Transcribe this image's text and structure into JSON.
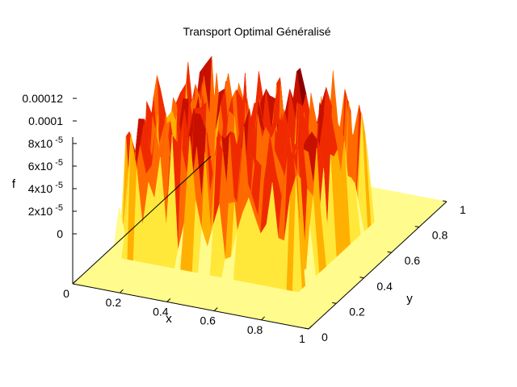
{
  "chart_data": {
    "type": "surface3d",
    "title": "Transport Optimal Généralisé",
    "xlabel": "x",
    "ylabel": "y",
    "zlabel": "f",
    "xlim": [
      0,
      1
    ],
    "ylim": [
      0,
      1
    ],
    "zlim": [
      0,
      0.00013
    ],
    "x_ticks": [
      {
        "value": 0,
        "label": "0"
      },
      {
        "value": 0.2,
        "label": "0.2"
      },
      {
        "value": 0.4,
        "label": "0.4"
      },
      {
        "value": 0.6,
        "label": "0.6"
      },
      {
        "value": 0.8,
        "label": "0.8"
      },
      {
        "value": 1,
        "label": "1"
      }
    ],
    "y_ticks": [
      {
        "value": 0,
        "label": "0"
      },
      {
        "value": 0.2,
        "label": "0.2"
      },
      {
        "value": 0.4,
        "label": "0.4"
      },
      {
        "value": 0.6,
        "label": "0.6"
      },
      {
        "value": 0.8,
        "label": "0.8"
      },
      {
        "value": 1,
        "label": "1"
      }
    ],
    "z_ticks": [
      {
        "value": 0,
        "label": "0"
      },
      {
        "value": 2e-05,
        "label": "2x10",
        "exp": "-5"
      },
      {
        "value": 4e-05,
        "label": "4x10",
        "exp": "-5"
      },
      {
        "value": 6e-05,
        "label": "6x10",
        "exp": "-5"
      },
      {
        "value": 8e-05,
        "label": "8x10",
        "exp": "-5"
      },
      {
        "value": 0.0001,
        "label": "0.0001"
      },
      {
        "value": 0.00012,
        "label": "0.00012"
      }
    ],
    "support": {
      "x": [
        0.05,
        0.82
      ],
      "y": [
        0.25,
        0.78
      ]
    },
    "plateau_value": 9.5e-05,
    "colormap": [
      "#fffb8c",
      "#ffe83a",
      "#ffb000",
      "#ff6a00",
      "#f02a00",
      "#c81000",
      "#8a0000",
      "#3c0000"
    ],
    "grid": false,
    "legend": "none"
  }
}
